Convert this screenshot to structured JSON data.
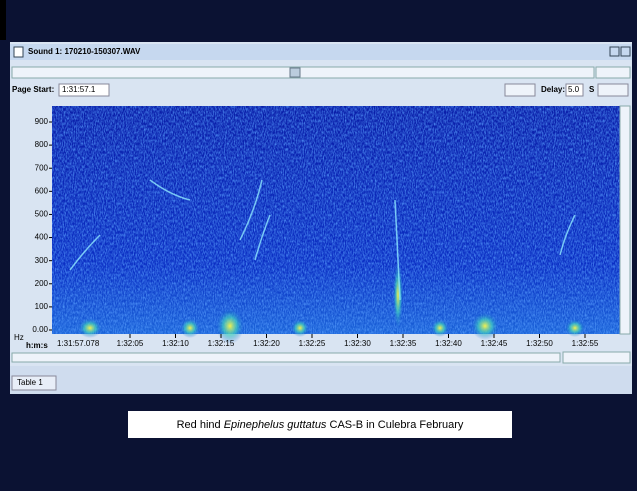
{
  "window": {
    "title": "Sound 1: 170210-150307.WAV"
  },
  "toolbar": {
    "page_start_label": "Page Start:",
    "page_start_value": "1:31:57.1",
    "delay_label": "Delay:",
    "delay_value": "5.0",
    "delay_unit": "S"
  },
  "axis": {
    "y_unit": "Hz",
    "x_unit": "h:m:s",
    "y_labels": [
      "900",
      "800",
      "700",
      "600",
      "500",
      "400",
      "300",
      "200",
      "100",
      "0.00"
    ],
    "x_labels": [
      "1:31:57.078",
      "1:32:05",
      "1:32:10",
      "1:32:15",
      "1:32:20",
      "1:32:25",
      "1:32:30",
      "1:32:35",
      "1:32:40",
      "1:32:45",
      "1:32:50",
      "1:32:55"
    ]
  },
  "tabs": [
    "Table 1"
  ],
  "caption": {
    "before": "Red hind ",
    "species": "Epinephelus guttatus",
    "after": " CAS-B in Culebra February"
  }
}
